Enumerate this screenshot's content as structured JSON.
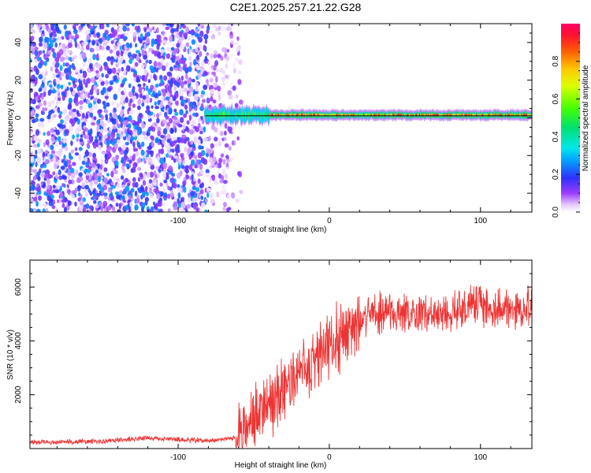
{
  "title": "C2E1.2025.257.21.22.G28",
  "chart_data": [
    {
      "type": "heatmap",
      "xlabel": "Height of straight line (km)",
      "ylabel": "Frequency (Hz)",
      "xlim": [
        -198,
        134
      ],
      "ylim": [
        -50,
        50
      ],
      "xticks": [
        -100,
        0,
        100
      ],
      "yticks": [
        -40,
        -20,
        0,
        20,
        40
      ],
      "colorbar": {
        "label": "Normalized spectral amplitude",
        "range": [
          0,
          1
        ],
        "ticks": [
          0.0,
          0.2,
          0.4,
          0.6,
          0.8
        ],
        "tick_labels": [
          "0.0",
          "0.2",
          "0.4",
          "0.6",
          "0.8"
        ]
      },
      "description_values": {
        "noise_region_x": [
          -198,
          -58
        ],
        "signal_start_x": -82,
        "signal_frequency_hz": 1.5,
        "noise_amplitude_range": [
          0.02,
          0.28
        ],
        "signal_peak_amplitude": 1.0
      }
    },
    {
      "type": "line",
      "xlabel": "Height of straight line (km)",
      "ylabel": "SNR (10 * v/v)",
      "xlim": [
        -198,
        134
      ],
      "ylim": [
        0,
        7000
      ],
      "xticks": [
        -100,
        0,
        100
      ],
      "yticks": [
        2000,
        4000,
        6000
      ],
      "color": "#ef3333",
      "series": [
        {
          "name": "SNR",
          "x": [
            -198,
            -150,
            -120,
            -80,
            -62,
            -50,
            -40,
            -30,
            -20,
            -10,
            0,
            10,
            20,
            30,
            40,
            50,
            60,
            70,
            80,
            90,
            100,
            110,
            120,
            134
          ],
          "y": [
            230,
            270,
            400,
            270,
            400,
            1100,
            1700,
            2000,
            2700,
            3200,
            3800,
            4300,
            4700,
            5000,
            5200,
            5000,
            5000,
            5000,
            5100,
            5300,
            5400,
            5200,
            5200,
            5200
          ]
        }
      ]
    }
  ]
}
